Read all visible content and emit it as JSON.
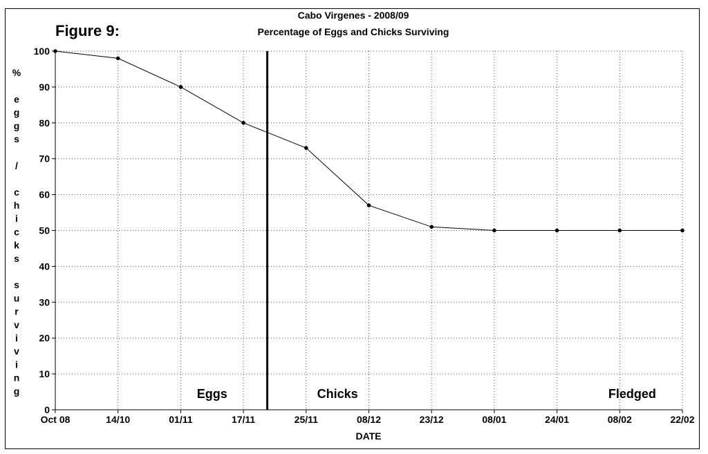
{
  "figure_label": "Figure 9:",
  "chart_data": {
    "type": "line",
    "title": "Cabo Virgenes - 2008/09",
    "subtitle": "Percentage of Eggs and Chicks Surviving",
    "xlabel": "DATE",
    "ylabel": "% eggs / chicks surviving",
    "ylabel_chars": [
      "%",
      "",
      "e",
      "g",
      "g",
      "s",
      "",
      "/",
      "",
      "c",
      "h",
      "i",
      "c",
      "k",
      "s",
      "",
      "s",
      "u",
      "r",
      "v",
      "i",
      "v",
      "i",
      "n",
      "g"
    ],
    "categories": [
      "Oct 08",
      "14/10",
      "01/11",
      "17/11",
      "25/11",
      "08/12",
      "23/12",
      "08/01",
      "24/01",
      "08/02",
      "22/02"
    ],
    "values": [
      100,
      98,
      90,
      80,
      73,
      57,
      51,
      50,
      50,
      50,
      50
    ],
    "ylim": [
      0,
      100
    ],
    "yticks": [
      0,
      10,
      20,
      30,
      40,
      50,
      60,
      70,
      80,
      90,
      100
    ],
    "grid": true,
    "stage_divider_x": 3.38,
    "stage_labels": [
      {
        "text": "Eggs",
        "x": 2.5
      },
      {
        "text": "Chicks",
        "x": 4.5
      },
      {
        "text": "Fledged",
        "x": 9.2
      }
    ],
    "colors": {
      "line": "#000000",
      "grid": "#555555"
    }
  }
}
